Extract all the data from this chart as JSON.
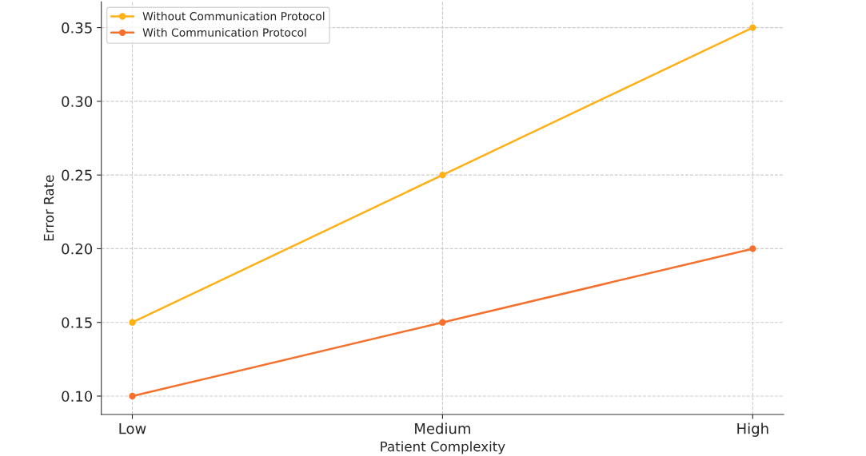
{
  "chart_data": {
    "type": "line",
    "xlabel": "Patient Complexity",
    "ylabel": "Error Rate",
    "categories": [
      "Low",
      "Medium",
      "High"
    ],
    "series": [
      {
        "name": "Without Communication Protocol",
        "color": "#ffb014",
        "values": [
          0.15,
          0.25,
          0.35
        ]
      },
      {
        "name": "With Communication Protocol",
        "color": "#f4702c",
        "values": [
          0.1,
          0.15,
          0.2
        ]
      }
    ],
    "ylim": [
      0.0875,
      0.3675
    ],
    "yticks": [
      {
        "value": 0.1,
        "label": "0.10"
      },
      0.15,
      {
        "value": 0.2,
        "label": "0.20"
      },
      0.25,
      {
        "value": 0.3,
        "label": "0.30"
      },
      0.35
    ],
    "grid": true,
    "legend": "top left",
    "marker": "circle",
    "line_style": "solid"
  }
}
